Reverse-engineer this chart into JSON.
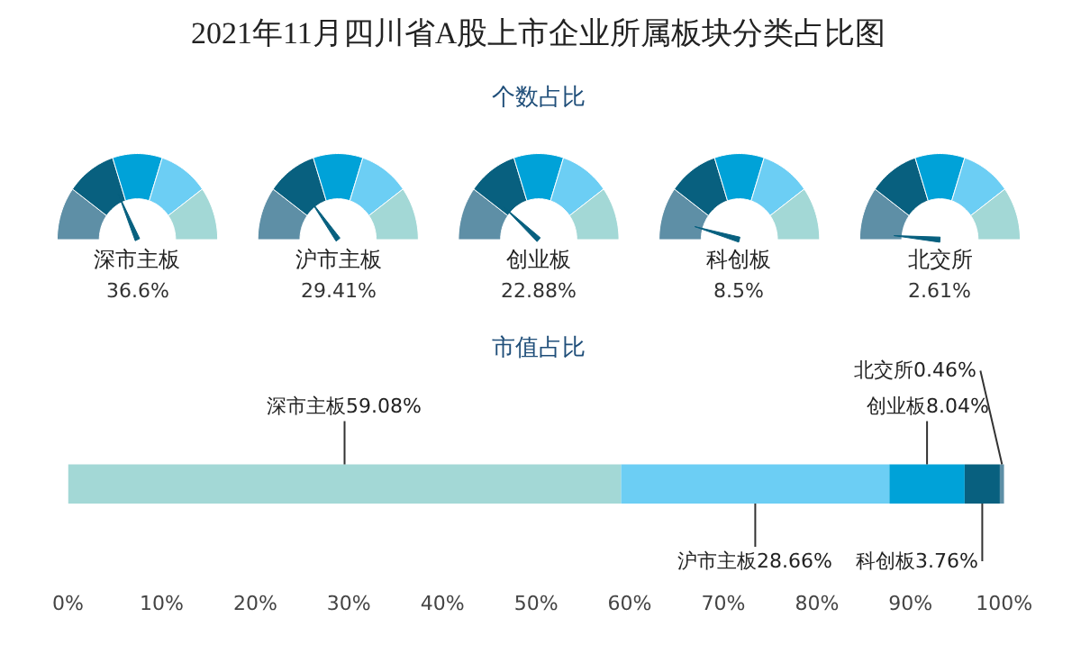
{
  "chart_data": [
    {
      "type": "other",
      "title": "2021年11月四川省A股上市企业所属板块分类占比图",
      "subtitle": "个数占比",
      "categories": [
        "深市主板",
        "沪市主板",
        "创业板",
        "科创板",
        "北交所"
      ],
      "values": [
        36.6,
        29.41,
        22.88,
        8.5,
        2.61
      ],
      "value_labels": [
        "36.6%",
        "29.41%",
        "22.88%",
        "8.5%",
        "2.61%"
      ],
      "colors": [
        "#5e8fa6",
        "#08607f",
        "#00a2d8",
        "#6ccef4",
        "#a3d8d6"
      ]
    },
    {
      "type": "bar",
      "orientation": "horizontal",
      "stacked": true,
      "title": "市值占比",
      "categories": [
        null
      ],
      "series": [
        {
          "color": "#a3d8d6",
          "values": [
            59.08
          ],
          "value_labels": [
            "深市主板59.08%"
          ]
        },
        {
          "color": "#6ccef4",
          "values": [
            28.66
          ],
          "value_labels": [
            "沪市主板28.66%"
          ]
        },
        {
          "color": "#00a2d8",
          "values": [
            8.04
          ],
          "value_labels": [
            "创业板8.04%"
          ]
        },
        {
          "color": "#08607f",
          "values": [
            3.76
          ],
          "value_labels": [
            "科创板3.76%"
          ]
        },
        {
          "color": "#5e8fa6",
          "values": [
            0.46
          ],
          "value_labels": [
            "北交所0.46%"
          ]
        }
      ],
      "xlim": [
        0,
        100
      ],
      "xticks": [
        {
          "value": 0,
          "label": "0%"
        },
        {
          "value": 10,
          "label": "10%"
        },
        {
          "value": 20,
          "label": "20%"
        },
        {
          "value": 30,
          "label": "30%"
        },
        {
          "value": 40,
          "label": "40%"
        },
        {
          "value": 50,
          "label": "50%"
        },
        {
          "value": 60,
          "label": "60%"
        },
        {
          "value": 70,
          "label": "70%"
        },
        {
          "value": 80,
          "label": "80%"
        },
        {
          "value": 90,
          "label": "90%"
        },
        {
          "value": 100,
          "label": "100%"
        }
      ],
      "tick_labels": "x"
    }
  ]
}
